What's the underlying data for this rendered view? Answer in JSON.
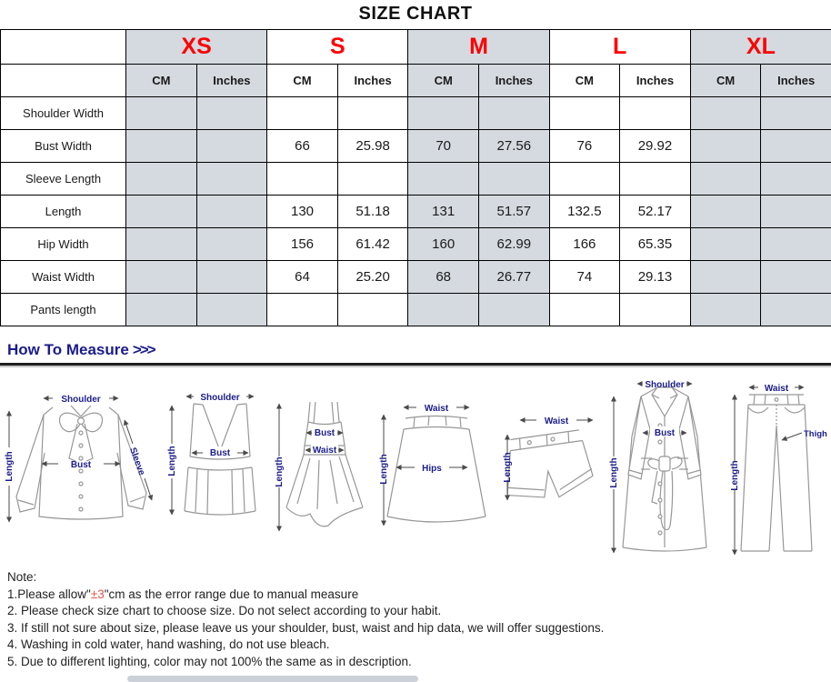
{
  "title": "SIZE CHART",
  "table": {
    "sizes": [
      "XS",
      "S",
      "M",
      "L",
      "XL"
    ],
    "unit_headers": [
      "CM",
      "Inches"
    ],
    "rows": [
      {
        "label": "Shoulder Width",
        "values": [
          "",
          "",
          "",
          "",
          "",
          "",
          "",
          "",
          "",
          ""
        ]
      },
      {
        "label": "Bust Width",
        "values": [
          "",
          "",
          "66",
          "25.98",
          "70",
          "27.56",
          "76",
          "29.92",
          "",
          ""
        ]
      },
      {
        "label": "Sleeve Length",
        "values": [
          "",
          "",
          "",
          "",
          "",
          "",
          "",
          "",
          "",
          ""
        ]
      },
      {
        "label": "Length",
        "values": [
          "",
          "",
          "130",
          "51.18",
          "131",
          "51.57",
          "132.5",
          "52.17",
          "",
          ""
        ]
      },
      {
        "label": "Hip Width",
        "values": [
          "",
          "",
          "156",
          "61.42",
          "160",
          "62.99",
          "166",
          "65.35",
          "",
          ""
        ]
      },
      {
        "label": "Waist Width",
        "values": [
          "",
          "",
          "64",
          "25.20",
          "68",
          "26.77",
          "74",
          "29.13",
          "",
          ""
        ]
      },
      {
        "label": "Pants length",
        "values": [
          "",
          "",
          "",
          "",
          "",
          "",
          "",
          "",
          "",
          ""
        ]
      }
    ]
  },
  "how_to_measure": {
    "heading": "How To Measure",
    "arrows": ">>>"
  },
  "diagrams": [
    {
      "name": "blouse",
      "labels": {
        "shoulder": "Shoulder",
        "bust": "Bust",
        "sleeve": "Sleeve",
        "length": "Length"
      }
    },
    {
      "name": "vest",
      "labels": {
        "shoulder": "Shoulder",
        "bust": "Bust",
        "length": "Length"
      }
    },
    {
      "name": "cami-dress",
      "labels": {
        "bust": "Bust",
        "waist": "Waist",
        "length": "Length"
      }
    },
    {
      "name": "skirt",
      "labels": {
        "waist": "Waist",
        "hips": "Hips",
        "length": "Length"
      }
    },
    {
      "name": "shorts",
      "labels": {
        "waist": "Waist",
        "length": "Length"
      }
    },
    {
      "name": "coat",
      "labels": {
        "shoulder": "Shoulder",
        "bust": "Bust",
        "length": "Length"
      }
    },
    {
      "name": "pants",
      "labels": {
        "waist": "Waist",
        "thigh": "Thigh",
        "length": "Length"
      }
    }
  ],
  "notes": {
    "heading": "Note:",
    "item1": {
      "pre": "1.Please allow\"",
      "red": "±3",
      "post": "\"cm as the error range due to manual measure"
    },
    "items": [
      "2. Please check size chart to choose size. Do not select according to your habit.",
      "3. If still not sure about size, please leave us your shoulder, bust, waist and hip data, we will offer suggestions.",
      "4. Washing in cold water, hand washing, do not use bleach.",
      "5. Due to different lighting, color may not 100% the same as in description."
    ]
  },
  "colors": {
    "accent_red": "#fe0000",
    "navy_label": "#1c1c8c",
    "cell_gray": "#d5dae0"
  }
}
